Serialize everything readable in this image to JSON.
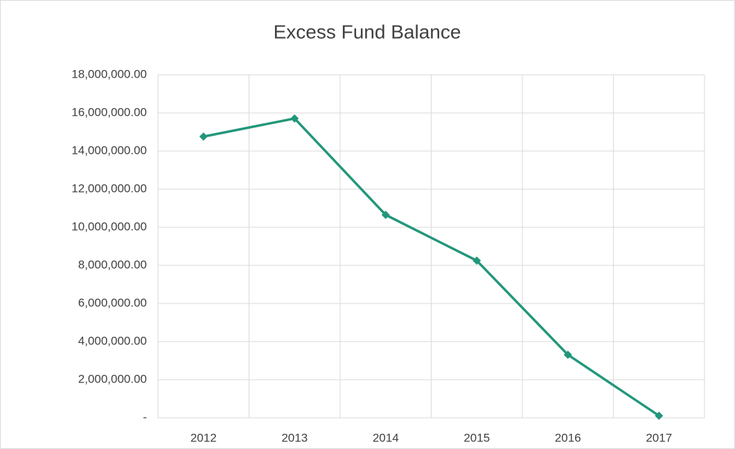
{
  "chart_data": {
    "type": "line",
    "title": "Excess Fund Balance",
    "categories": [
      "2012",
      "2013",
      "2014",
      "2015",
      "2016",
      "2017"
    ],
    "series": [
      {
        "name": "Excess Fund Balance",
        "color": "#22977a",
        "values": [
          14760000,
          15710000,
          10650000,
          8250000,
          3310000,
          110000
        ]
      }
    ],
    "ylim": [
      0,
      18000000
    ],
    "yticks": [
      {
        "value": 0,
        "label": "-"
      },
      {
        "value": 2000000,
        "label": "2,000,000.00"
      },
      {
        "value": 4000000,
        "label": "4,000,000.00"
      },
      {
        "value": 6000000,
        "label": "6,000,000.00"
      },
      {
        "value": 8000000,
        "label": "8,000,000.00"
      },
      {
        "value": 10000000,
        "label": "10,000,000.00"
      },
      {
        "value": 12000000,
        "label": "12,000,000.00"
      },
      {
        "value": 14000000,
        "label": "14,000,000.00"
      },
      {
        "value": 16000000,
        "label": "16,000,000.00"
      },
      {
        "value": 18000000,
        "label": "18,000,000.00"
      }
    ],
    "grid": true
  }
}
